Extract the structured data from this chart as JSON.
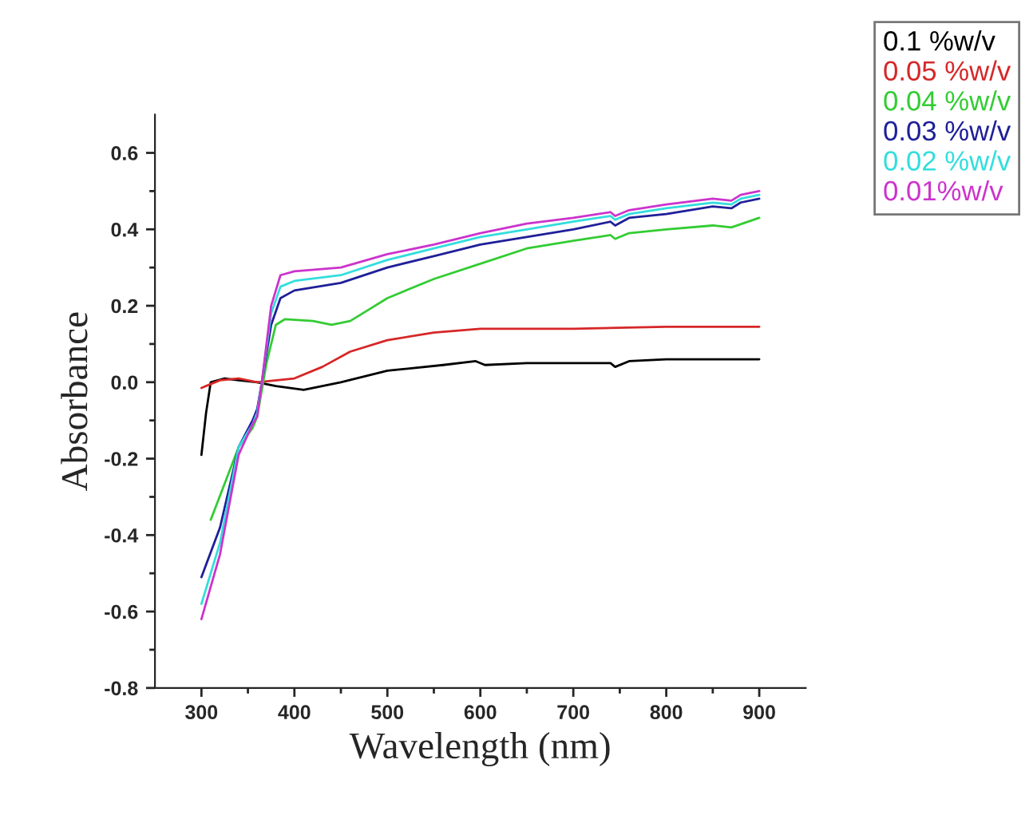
{
  "chart_data": {
    "type": "line",
    "xlabel": "Wavelength (nm)",
    "ylabel": "Absorbance",
    "xlim": [
      250,
      950
    ],
    "ylim": [
      -0.8,
      0.7
    ],
    "xticks": [
      {
        "value": 300,
        "label": "300"
      },
      {
        "value": 350,
        "label": null
      },
      {
        "value": 400,
        "label": "400"
      },
      {
        "value": 450,
        "label": null
      },
      {
        "value": 500,
        "label": "500"
      },
      {
        "value": 550,
        "label": null
      },
      {
        "value": 600,
        "label": "600"
      },
      {
        "value": 650,
        "label": null
      },
      {
        "value": 700,
        "label": "700"
      },
      {
        "value": 750,
        "label": null
      },
      {
        "value": 800,
        "label": "800"
      },
      {
        "value": 850,
        "label": null
      },
      {
        "value": 900,
        "label": "900"
      }
    ],
    "yticks": [
      {
        "value": -0.8,
        "label": "-0.8"
      },
      {
        "value": -0.7,
        "label": null
      },
      {
        "value": -0.6,
        "label": "-0.6"
      },
      {
        "value": -0.5,
        "label": null
      },
      {
        "value": -0.4,
        "label": "-0.4"
      },
      {
        "value": -0.3,
        "label": null
      },
      {
        "value": -0.2,
        "label": "-0.2"
      },
      {
        "value": -0.1,
        "label": null
      },
      {
        "value": 0.0,
        "label": "0.0"
      },
      {
        "value": 0.1,
        "label": null
      },
      {
        "value": 0.2,
        "label": "0.2"
      },
      {
        "value": 0.3,
        "label": null
      },
      {
        "value": 0.4,
        "label": "0.4"
      },
      {
        "value": 0.5,
        "label": null
      },
      {
        "value": 0.6,
        "label": "0.6"
      }
    ],
    "grid": false,
    "legend": "top right",
    "marker": "none",
    "line_style": "solid",
    "series": [
      {
        "name": "0.1 %w/v",
        "color": "#000000",
        "x": [
          300,
          305,
          310,
          325,
          340,
          360,
          380,
          410,
          450,
          500,
          560,
          595,
          605,
          650,
          700,
          740,
          745,
          760,
          800,
          900
        ],
        "values": [
          -0.19,
          -0.08,
          0.0,
          0.01,
          0.005,
          0.0,
          -0.01,
          -0.02,
          0.0,
          0.03,
          0.045,
          0.055,
          0.045,
          0.05,
          0.05,
          0.05,
          0.04,
          0.055,
          0.06,
          0.06
        ]
      },
      {
        "name": "0.05 %w/v",
        "color": "#d62728",
        "x": [
          300,
          320,
          340,
          360,
          400,
          430,
          460,
          500,
          550,
          600,
          700,
          800,
          900
        ],
        "values": [
          -0.015,
          0.005,
          0.01,
          0.0,
          0.01,
          0.04,
          0.08,
          0.11,
          0.13,
          0.14,
          0.14,
          0.145,
          0.145
        ]
      },
      {
        "name": "0.04 %w/v",
        "color": "#33cc33",
        "x": [
          310,
          340,
          355,
          360,
          370,
          380,
          390,
          420,
          440,
          460,
          480,
          500,
          550,
          600,
          650,
          700,
          740,
          745,
          760,
          800,
          850,
          870,
          900
        ],
        "values": [
          -0.36,
          -0.17,
          -0.12,
          -0.09,
          0.05,
          0.15,
          0.165,
          0.16,
          0.15,
          0.16,
          0.19,
          0.22,
          0.27,
          0.31,
          0.35,
          0.37,
          0.385,
          0.375,
          0.39,
          0.4,
          0.41,
          0.405,
          0.43
        ]
      },
      {
        "name": "0.03 %w/v",
        "color": "#1f1f99",
        "x": [
          300,
          320,
          340,
          355,
          360,
          365,
          375,
          385,
          400,
          450,
          500,
          550,
          600,
          650,
          700,
          740,
          745,
          760,
          800,
          850,
          870,
          880,
          900
        ],
        "values": [
          -0.51,
          -0.38,
          -0.17,
          -0.1,
          -0.07,
          0.0,
          0.15,
          0.22,
          0.24,
          0.26,
          0.3,
          0.33,
          0.36,
          0.38,
          0.4,
          0.42,
          0.41,
          0.43,
          0.44,
          0.46,
          0.455,
          0.47,
          0.48
        ]
      },
      {
        "name": "0.02 %w/v",
        "color": "#33dddd",
        "x": [
          300,
          320,
          340,
          355,
          360,
          365,
          375,
          385,
          400,
          450,
          500,
          550,
          600,
          650,
          700,
          740,
          745,
          760,
          800,
          850,
          870,
          880,
          900
        ],
        "values": [
          -0.58,
          -0.42,
          -0.17,
          -0.11,
          -0.08,
          0.0,
          0.18,
          0.25,
          0.265,
          0.28,
          0.32,
          0.35,
          0.38,
          0.4,
          0.42,
          0.435,
          0.425,
          0.44,
          0.455,
          0.47,
          0.465,
          0.48,
          0.49
        ]
      },
      {
        "name": "0.01%w/v",
        "color": "#cc33cc",
        "x": [
          300,
          320,
          340,
          355,
          360,
          365,
          375,
          385,
          400,
          450,
          500,
          550,
          600,
          650,
          700,
          740,
          745,
          760,
          800,
          850,
          870,
          880,
          900
        ],
        "values": [
          -0.62,
          -0.45,
          -0.19,
          -0.11,
          -0.09,
          0.0,
          0.2,
          0.28,
          0.29,
          0.3,
          0.335,
          0.36,
          0.39,
          0.415,
          0.43,
          0.445,
          0.435,
          0.45,
          0.465,
          0.48,
          0.475,
          0.49,
          0.5
        ]
      }
    ]
  }
}
